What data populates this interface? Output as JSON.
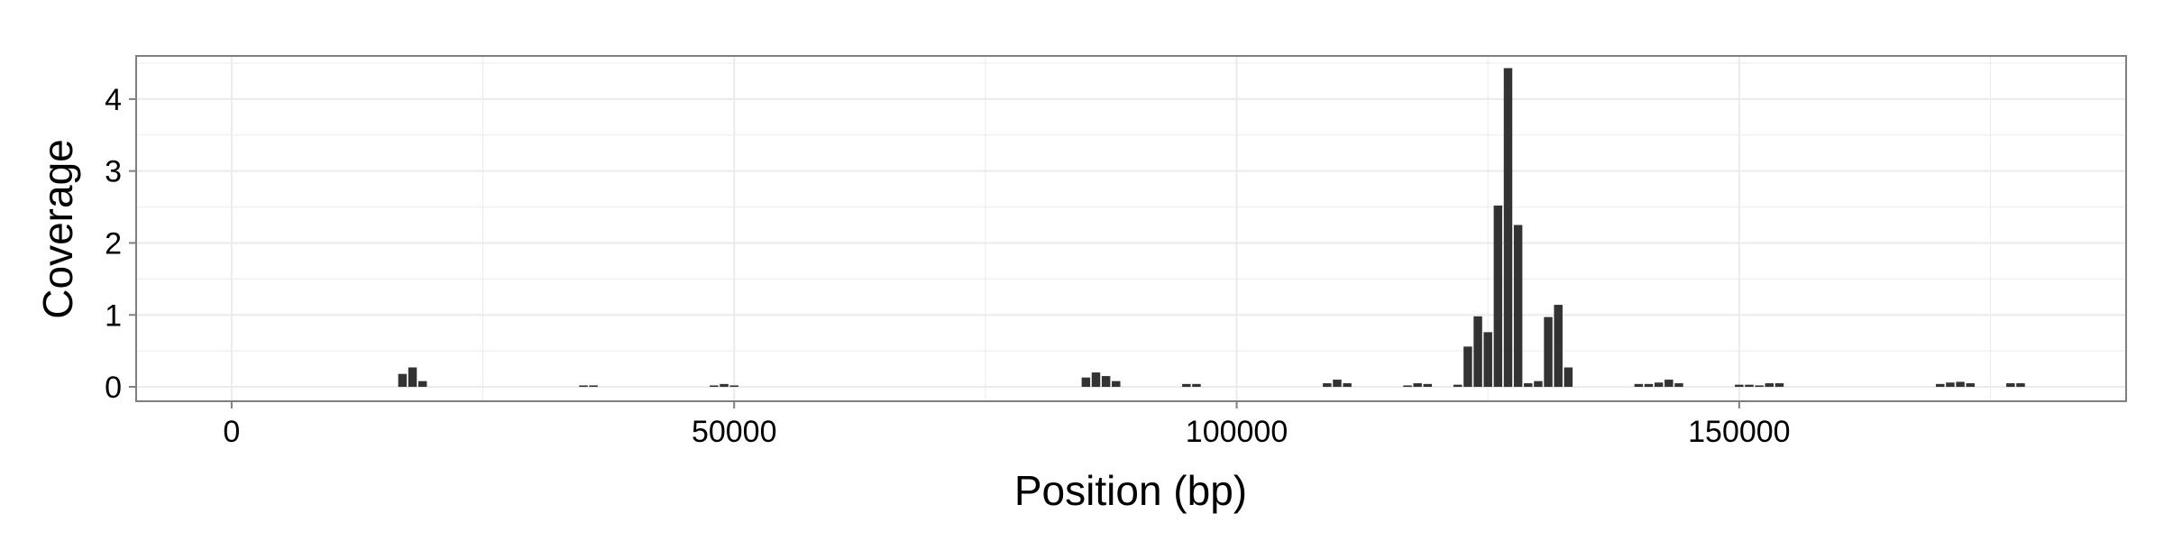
{
  "chart_data": {
    "type": "bar",
    "title": "",
    "xlabel": "Position (bp)",
    "ylabel": "Coverage",
    "xlim": [
      -9500,
      188500
    ],
    "ylim": [
      -0.2,
      4.6
    ],
    "x_ticks": [
      0,
      50000,
      100000,
      150000
    ],
    "x_tick_labels": [
      "0",
      "50000",
      "100000",
      "150000"
    ],
    "y_ticks": [
      0,
      1,
      2,
      3,
      4
    ],
    "y_tick_labels": [
      "0",
      "1",
      "2",
      "3",
      "4"
    ],
    "grid": true,
    "bar_width": 850,
    "bar_color": "#333333",
    "background_color": "#ffffff",
    "grid_color": "#ebebeb",
    "panel_border_color": "#7f7f7f",
    "x": [
      17000,
      18000,
      19000,
      35000,
      36000,
      48000,
      49000,
      50000,
      85000,
      86000,
      87000,
      88000,
      95000,
      96000,
      109000,
      110000,
      111000,
      117000,
      118000,
      119000,
      122000,
      123000,
      124000,
      125000,
      126000,
      127000,
      128000,
      129000,
      130000,
      131000,
      132000,
      133000,
      140000,
      141000,
      142000,
      143000,
      144000,
      150000,
      151000,
      152000,
      153000,
      154000,
      170000,
      171000,
      172000,
      173000,
      177000,
      178000
    ],
    "values": [
      0.18,
      0.27,
      0.08,
      0.02,
      0.02,
      0.02,
      0.04,
      0.02,
      0.13,
      0.2,
      0.15,
      0.08,
      0.04,
      0.04,
      0.05,
      0.1,
      0.05,
      0.02,
      0.05,
      0.04,
      0.03,
      0.56,
      0.98,
      0.76,
      2.52,
      4.43,
      2.25,
      0.05,
      0.08,
      0.97,
      1.14,
      0.27,
      0.04,
      0.04,
      0.06,
      0.1,
      0.05,
      0.03,
      0.03,
      0.02,
      0.05,
      0.05,
      0.04,
      0.06,
      0.07,
      0.05,
      0.05,
      0.05
    ]
  }
}
